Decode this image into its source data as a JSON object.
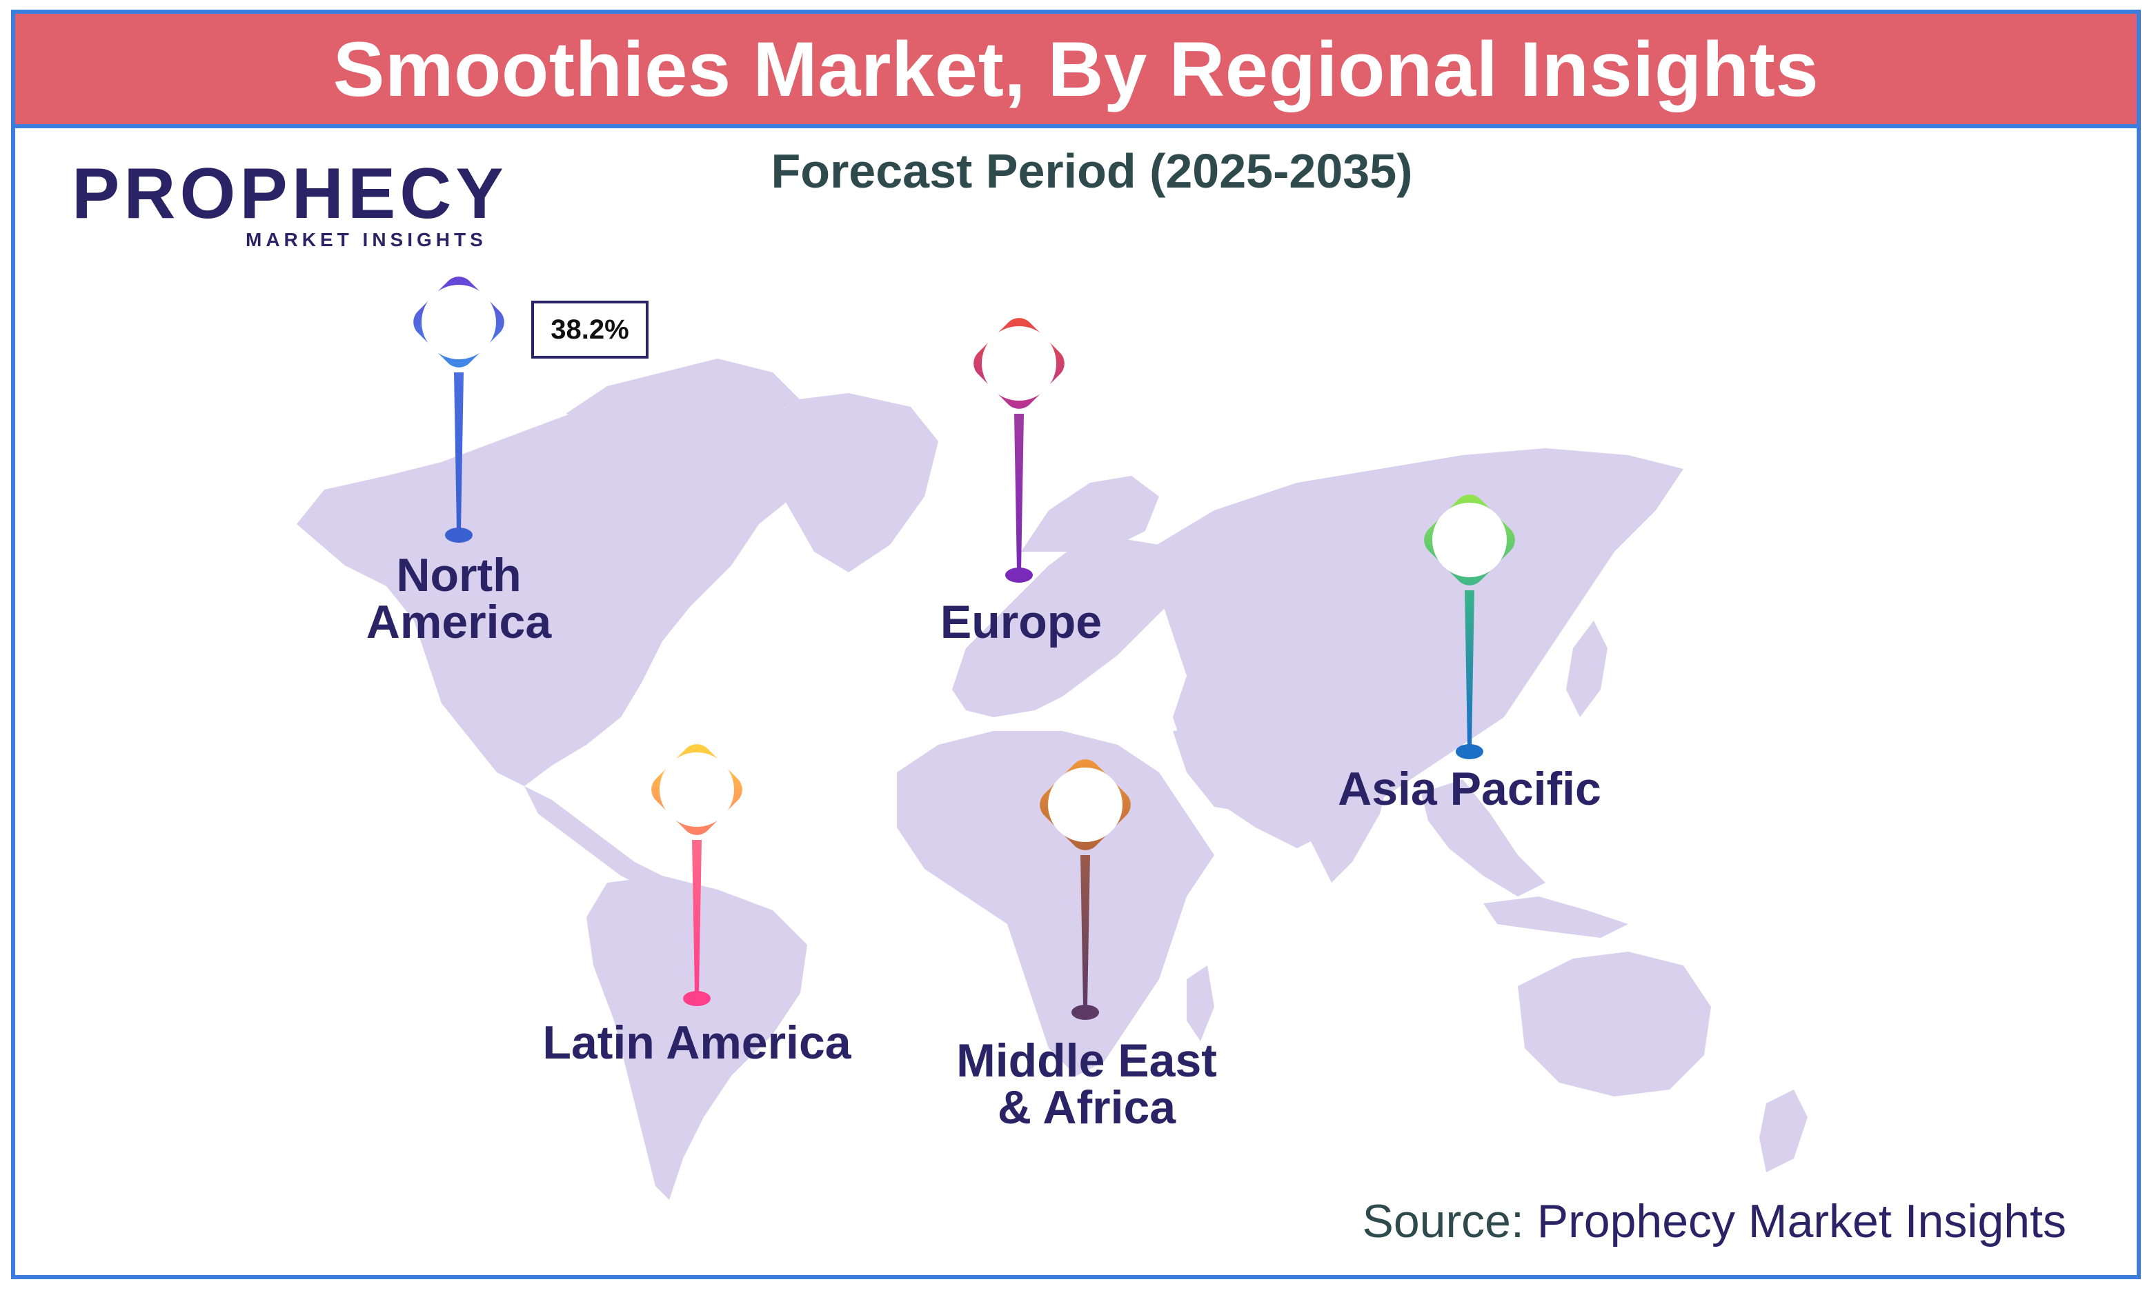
{
  "title": "Smoothies Market, By Regional Insights",
  "subtitle": "Forecast Period (2025-2035)",
  "logo": {
    "word": "PROPHECY",
    "tagline": "MARKET INSIGHTS"
  },
  "regions": [
    {
      "name_line1": "North",
      "name_line2": "America",
      "value": "38.2%",
      "colors": [
        "#6a3fd6",
        "#3b8fe8"
      ]
    },
    {
      "name_line1": "Europe",
      "name_line2": "",
      "colors": [
        "#e8453c",
        "#8a2fb8"
      ]
    },
    {
      "name_line1": "Asia Pacific",
      "name_line2": "",
      "colors": [
        "#8be04e",
        "#1b7fc4"
      ]
    },
    {
      "name_line1": "Latin America",
      "name_line2": "",
      "colors": [
        "#ffd23c",
        "#ff3f8a"
      ]
    },
    {
      "name_line1": "Middle East",
      "name_line2": "& Africa",
      "colors": [
        "#f08a3a",
        "#5c3a64"
      ]
    }
  ],
  "source": {
    "prefix": "Source:",
    "name": "Prophecy Market Insights"
  },
  "colors": {
    "title_bg": "#e0606c",
    "frame": "#3b7ddd",
    "map_fill": "#d8d0ec",
    "label": "#2a2466"
  }
}
